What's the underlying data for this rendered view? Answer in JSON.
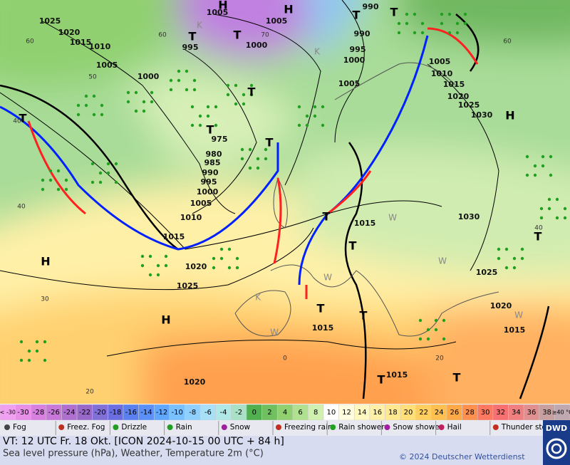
{
  "map": {
    "isobar_labels": [
      "1025",
      "1020",
      "1015",
      "1010",
      "1005",
      "1000",
      "995",
      "1000",
      "1005",
      "1005",
      "990",
      "990",
      "995",
      "1000",
      "1005",
      "1005",
      "1010",
      "1015",
      "1020",
      "1025",
      "1030",
      "975",
      "980",
      "985",
      "990",
      "995",
      "1000",
      "1005",
      "1010",
      "1015",
      "1020",
      "1025",
      "1015",
      "1030",
      "1025",
      "1020",
      "1015",
      "1015",
      "1015",
      "1020"
    ],
    "temperature_labels": [
      "60",
      "50",
      "40",
      "40",
      "30",
      "20",
      "0",
      "20",
      "60",
      "70",
      "60",
      "40"
    ],
    "pressure_centers": [
      "H",
      "H",
      "H",
      "H",
      "H",
      "T",
      "T",
      "T",
      "T",
      "T",
      "T",
      "T",
      "T",
      "T",
      "T",
      "T",
      "T",
      "T",
      "T",
      "T"
    ],
    "other_labels": [
      "K",
      "K",
      "K",
      "W",
      "W",
      "W",
      "W",
      "W"
    ]
  },
  "legend": {
    "temperature_scale": [
      "< -30",
      "-30",
      "-28",
      "-26",
      "-24",
      "-22",
      "-20",
      "-18",
      "-16",
      "-14",
      "-12",
      "-10",
      "-8",
      "-6",
      "-4",
      "-2",
      "0",
      "2",
      "4",
      "6",
      "8",
      "10",
      "12",
      "14",
      "16",
      "18",
      "20",
      "22",
      "24",
      "26",
      "28",
      "30",
      "32",
      "34",
      "36",
      "38",
      "≥40 °C"
    ],
    "temperature_colors": [
      "#f0a0f0",
      "#e890e8",
      "#d880e0",
      "#c878d8",
      "#b070d0",
      "#9868c8",
      "#8070d8",
      "#6a6ee0",
      "#5a80f0",
      "#5a90f8",
      "#60a8ff",
      "#78c0ff",
      "#90d0ff",
      "#a8e0f8",
      "#b0e8e8",
      "#a8e0c8",
      "#50b050",
      "#70c060",
      "#90d070",
      "#b0e090",
      "#d0f0b0",
      "#ffffff",
      "#fffde0",
      "#fff8c0",
      "#fff0a8",
      "#ffe890",
      "#ffe078",
      "#ffd060",
      "#ffc050",
      "#ffa848",
      "#ff9050",
      "#ff7860",
      "#f87070",
      "#f08080",
      "#e09090",
      "#c8a0a0",
      "#c0a8b0"
    ],
    "weather": [
      "Fog",
      "Freez. Fog",
      "Drizzle",
      "Rain",
      "Snow",
      "Freezing rain",
      "Rain shower",
      "Snow shower",
      "Hail",
      "Thunder storm"
    ]
  },
  "footer": {
    "valid_time": "VT: 12 UTC Fr.  18 Okt. [ICON 2024-10-15  00 UTC + 84 h]",
    "description": "Sea level pressure (hPa), Weather, Temperature 2m (°C)",
    "copyright": "© 2024 Deutscher Wetterdienst",
    "logo": "DWD"
  }
}
